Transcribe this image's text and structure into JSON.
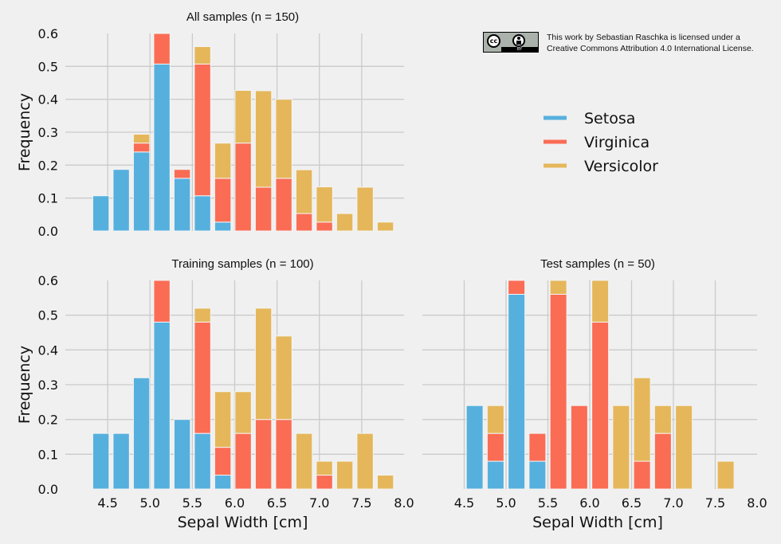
{
  "license": {
    "badge_text": "cc",
    "badge_by": "BY",
    "line1": "This work by Sebastian Raschka is licensed under a",
    "line2": "Creative Commons Attribution 4.0 International License."
  },
  "colors": {
    "background": "#f0f0f0",
    "grid": "#cbcbcb",
    "Setosa": "#56b0de",
    "Virginica": "#fb6c55",
    "Versicolor": "#e5b75a"
  },
  "legend": [
    {
      "label": "Setosa",
      "color": "#56b0de"
    },
    {
      "label": "Virginica",
      "color": "#fb6c55"
    },
    {
      "label": "Versicolor",
      "color": "#e5b75a"
    }
  ],
  "chart_data": [
    {
      "type": "bar",
      "stacked": true,
      "title": "All samples (n = 150)",
      "xlabel": "",
      "ylabel": "Frequency",
      "xlim": [
        4.0,
        8.0
      ],
      "ylim": [
        0.0,
        0.6
      ],
      "xticks": [],
      "yticks": [
        "0.0",
        "0.1",
        "0.2",
        "0.3",
        "0.4",
        "0.5",
        "0.6"
      ],
      "grid": true,
      "bin_start": 4.3,
      "bin_width": 0.24,
      "series": [
        {
          "name": "Setosa",
          "values": [
            0.107,
            0.187,
            0.24,
            0.507,
            0.16,
            0.107,
            0.027,
            0,
            0,
            0,
            0,
            0,
            0,
            0,
            0
          ]
        },
        {
          "name": "Virginica",
          "values": [
            0,
            0,
            0.027,
            0.093,
            0.027,
            0.4,
            0.133,
            0.267,
            0.133,
            0.16,
            0.053,
            0.027,
            0,
            0,
            0
          ]
        },
        {
          "name": "Versicolor",
          "values": [
            0,
            0,
            0.027,
            0,
            0,
            0.053,
            0.107,
            0.16,
            0.293,
            0.24,
            0.133,
            0.107,
            0.053,
            0.133,
            0.027
          ]
        }
      ]
    },
    {
      "type": "bar",
      "stacked": true,
      "title": "Training samples (n = 100)",
      "xlabel": "Sepal Width [cm]",
      "ylabel": "Frequency",
      "xlim": [
        4.0,
        8.0
      ],
      "ylim": [
        0.0,
        0.6
      ],
      "xticks": [
        "4.5",
        "5.0",
        "5.5",
        "6.0",
        "6.5",
        "7.0",
        "7.5",
        "8.0"
      ],
      "yticks": [
        "0.0",
        "0.1",
        "0.2",
        "0.3",
        "0.4",
        "0.5",
        "0.6"
      ],
      "grid": true,
      "bin_start": 4.3,
      "bin_width": 0.24,
      "series": [
        {
          "name": "Setosa",
          "values": [
            0.16,
            0.16,
            0.32,
            0.48,
            0.2,
            0.16,
            0.04,
            0,
            0,
            0,
            0,
            0,
            0,
            0,
            0
          ]
        },
        {
          "name": "Virginica",
          "values": [
            0,
            0,
            0,
            0.12,
            0,
            0.32,
            0.08,
            0.16,
            0.2,
            0.2,
            0,
            0.04,
            0,
            0,
            0
          ]
        },
        {
          "name": "Versicolor",
          "values": [
            0,
            0,
            0,
            0,
            0,
            0.04,
            0.16,
            0.12,
            0.32,
            0.24,
            0.16,
            0.04,
            0.08,
            0.16,
            0.04
          ]
        }
      ]
    },
    {
      "type": "bar",
      "stacked": true,
      "title": "Test samples (n = 50)",
      "xlabel": "Sepal Width [cm]",
      "ylabel": "",
      "xlim": [
        4.0,
        8.0
      ],
      "ylim": [
        0.0,
        0.6
      ],
      "xticks": [
        "4.5",
        "5.0",
        "5.5",
        "6.0",
        "6.5",
        "7.0",
        "7.5",
        "8.0"
      ],
      "yticks": [],
      "grid": true,
      "bin_start": 4.5,
      "bin_width": 0.25,
      "series": [
        {
          "name": "Setosa",
          "values": [
            0.24,
            0.08,
            0.56,
            0.08,
            0,
            0,
            0,
            0,
            0,
            0,
            0,
            0,
            0
          ]
        },
        {
          "name": "Virginica",
          "values": [
            0,
            0.08,
            0.04,
            0.08,
            0.56,
            0.24,
            0.48,
            0,
            0.08,
            0.16,
            0,
            0,
            0
          ]
        },
        {
          "name": "Versicolor",
          "values": [
            0,
            0.08,
            0,
            0,
            0.04,
            0,
            0.12,
            0.24,
            0.24,
            0.08,
            0.24,
            0,
            0.08
          ]
        }
      ]
    }
  ]
}
